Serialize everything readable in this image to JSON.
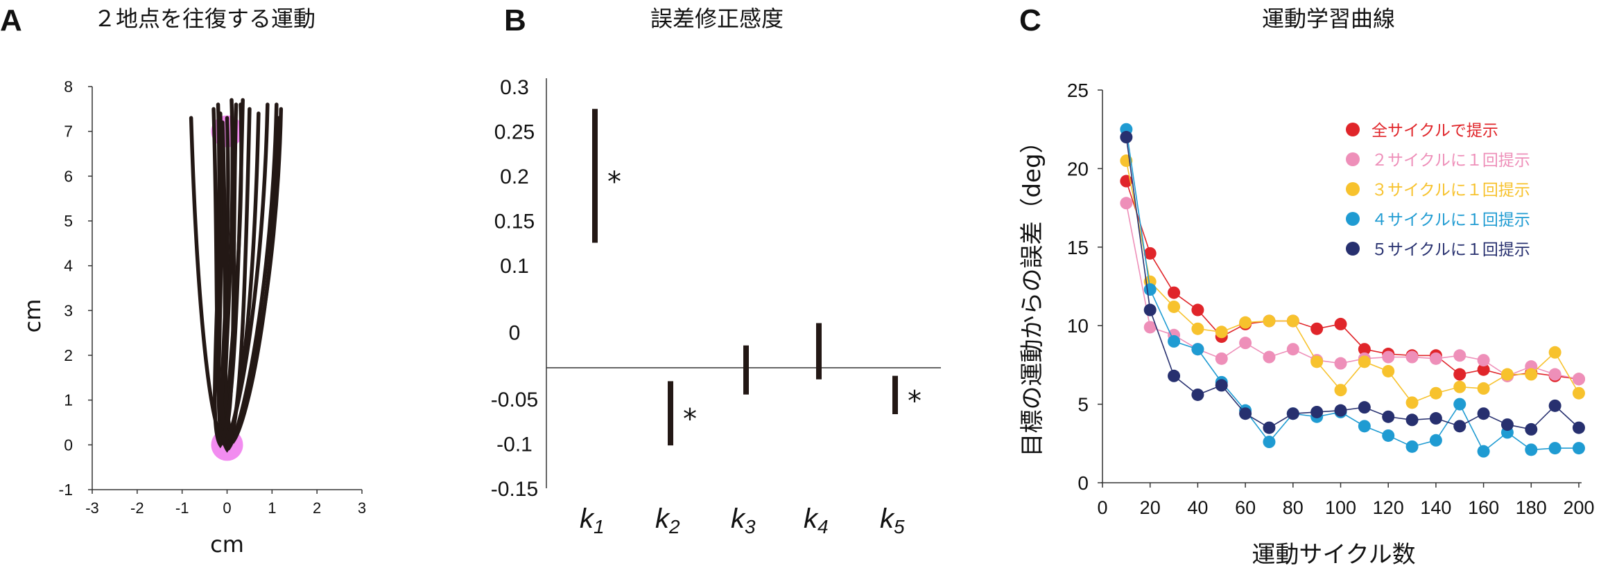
{
  "panels": {
    "A": {
      "letter": "A",
      "title": "２地点を往復する運動"
    },
    "B": {
      "letter": "B",
      "title": "誤差修正感度"
    },
    "C": {
      "letter": "C",
      "title": "運動学習曲線"
    }
  },
  "chart_data": [
    {
      "id": "A",
      "type": "line",
      "title": "２地点を往復する運動",
      "xlabel": "cm",
      "ylabel": "cm",
      "xlim": [
        -3,
        3
      ],
      "ylim": [
        -1,
        8
      ],
      "xticks": [
        "-3",
        "-2",
        "-1",
        "0",
        "1",
        "2",
        "3"
      ],
      "yticks": [
        "-1",
        "0",
        "1",
        "2",
        "3",
        "4",
        "5",
        "6",
        "7",
        "8"
      ],
      "targets": [
        {
          "name": "top",
          "x": 0,
          "y": 7,
          "color": "#f28cf0"
        },
        {
          "name": "bottom",
          "x": 0,
          "y": 0,
          "color": "#f28cf0"
        }
      ],
      "path_color": "#231815",
      "trajectories": [
        {
          "top": [
            -0.8,
            7.3
          ],
          "bottom": [
            -0.1,
            0.1
          ],
          "back": [
            0.2,
            7.6
          ]
        },
        {
          "top": [
            -0.3,
            7.5
          ],
          "bottom": [
            0.0,
            -0.1
          ],
          "back": [
            0.5,
            7.5
          ]
        },
        {
          "top": [
            -0.15,
            7.4
          ],
          "bottom": [
            -0.05,
            0.0
          ],
          "back": [
            0.9,
            7.6
          ]
        },
        {
          "top": [
            0.1,
            7.7
          ],
          "bottom": [
            0.05,
            -0.05
          ],
          "back": [
            1.1,
            7.6
          ]
        },
        {
          "top": [
            0.3,
            7.6
          ],
          "bottom": [
            0.1,
            0.05
          ],
          "back": [
            1.2,
            7.5
          ]
        },
        {
          "top": [
            -0.1,
            7.2
          ],
          "bottom": [
            0.15,
            0.1
          ],
          "back": [
            1.15,
            7.3
          ]
        },
        {
          "top": [
            0.0,
            7.3
          ],
          "bottom": [
            0.0,
            0.15
          ],
          "back": [
            0.7,
            7.4
          ]
        },
        {
          "top": [
            -0.2,
            7.6
          ],
          "bottom": [
            -0.15,
            0.0
          ],
          "back": [
            0.35,
            7.7
          ]
        }
      ]
    },
    {
      "id": "B",
      "type": "bar",
      "title": "誤差修正感度",
      "yticks": [
        "0.3",
        "0.25",
        "0.2",
        "0.15",
        "0.1",
        "0",
        "-0.05",
        "-0.1",
        "-0.15"
      ],
      "ylim": [
        -0.15,
        0.3
      ],
      "zero_line": -0.015,
      "categories": [
        {
          "base": "k",
          "sub": "1"
        },
        {
          "base": "k",
          "sub": "2"
        },
        {
          "base": "k",
          "sub": "3"
        },
        {
          "base": "k",
          "sub": "4"
        },
        {
          "base": "k",
          "sub": "5"
        }
      ],
      "intervals": [
        {
          "low": 0.125,
          "high": 0.275,
          "significant": true
        },
        {
          "low": -0.102,
          "high": -0.03,
          "significant": true
        },
        {
          "low": -0.045,
          "high": 0.01,
          "significant": false
        },
        {
          "low": -0.028,
          "high": 0.035,
          "significant": false
        },
        {
          "low": -0.067,
          "high": -0.024,
          "significant": true
        }
      ],
      "significance_marker": "*"
    },
    {
      "id": "C",
      "type": "line",
      "title": "運動学習曲線",
      "xlabel": "運動サイクル数",
      "ylabel": "目標の運動からの誤差（deg）",
      "xlim": [
        0,
        200
      ],
      "ylim": [
        0,
        25
      ],
      "xticks": [
        "0",
        "20",
        "40",
        "60",
        "80",
        "100",
        "120",
        "140",
        "160",
        "180",
        "200"
      ],
      "yticks": [
        "0",
        "5",
        "10",
        "15",
        "20",
        "25"
      ],
      "legend_position": "top-right",
      "x": [
        10,
        20,
        30,
        40,
        50,
        60,
        70,
        80,
        90,
        100,
        110,
        120,
        130,
        140,
        150,
        160,
        170,
        180,
        190,
        200
      ],
      "series": [
        {
          "name": "全サイクルで提示",
          "color": "#e0252a",
          "values": [
            19.2,
            14.6,
            12.1,
            11.0,
            9.3,
            10.1,
            10.3,
            10.3,
            9.8,
            10.1,
            8.5,
            8.2,
            8.1,
            8.1,
            6.9,
            7.2,
            6.8,
            7.0,
            6.8,
            6.6
          ]
        },
        {
          "name": "２サイクルに１回提示",
          "color": "#ee8fb9",
          "values": [
            17.8,
            9.9,
            9.4,
            8.5,
            7.9,
            8.9,
            8.0,
            8.5,
            7.8,
            7.6,
            7.9,
            8.0,
            8.0,
            7.9,
            8.1,
            7.8,
            6.8,
            7.4,
            6.9,
            6.6
          ]
        },
        {
          "name": "３サイクルに１回提示",
          "color": "#f7c22d",
          "values": [
            20.5,
            12.8,
            11.2,
            9.8,
            9.6,
            10.2,
            10.3,
            10.3,
            7.7,
            5.9,
            7.7,
            7.1,
            5.1,
            5.7,
            6.1,
            6.0,
            6.9,
            6.9,
            8.3,
            5.7
          ]
        },
        {
          "name": "４サイクルに１回提示",
          "color": "#1f9bd2",
          "values": [
            22.5,
            12.3,
            9.0,
            8.5,
            6.4,
            4.6,
            2.6,
            4.4,
            4.2,
            4.5,
            3.6,
            3.0,
            2.3,
            2.7,
            5.0,
            2.0,
            3.2,
            2.1,
            2.2,
            2.2
          ]
        },
        {
          "name": "５サイクルに１回提示",
          "color": "#27306f",
          "values": [
            22.0,
            11.0,
            6.8,
            5.6,
            6.2,
            4.4,
            3.5,
            4.4,
            4.5,
            4.6,
            4.8,
            4.2,
            4.0,
            4.1,
            3.6,
            4.4,
            3.7,
            3.4,
            4.9,
            3.5
          ]
        }
      ]
    }
  ]
}
